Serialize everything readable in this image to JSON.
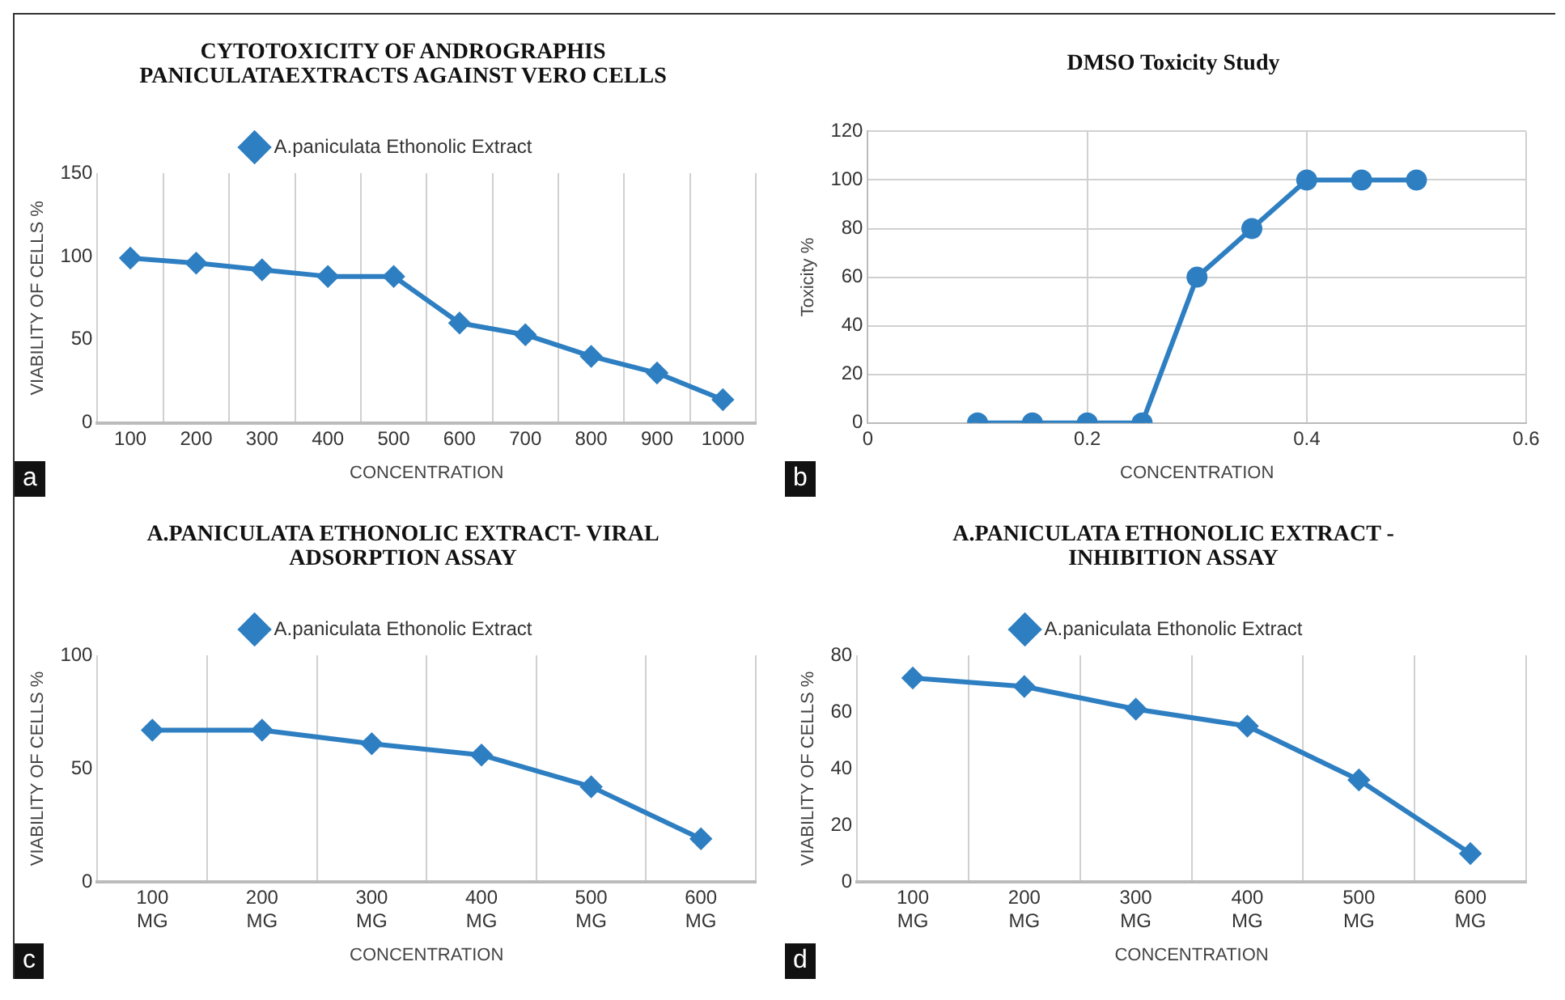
{
  "chart_data": [
    {
      "type": "line",
      "title": "CYTOTOXICITY OF ANDROGRAPHIS PANICULATAEXTRACTS AGAINST VERO CELLS",
      "xlabel": "CONCENTRATION",
      "ylabel": "VIABILITY OF CELLS %",
      "categories": [
        "100",
        "200",
        "300",
        "400",
        "500",
        "600",
        "700",
        "800",
        "900",
        "1000"
      ],
      "series": [
        {
          "name": "A.paniculata Ethonolic Extract",
          "color": "#2e7fc2",
          "values": [
            99,
            96,
            92,
            88,
            88,
            60,
            53,
            40,
            30,
            14
          ]
        }
      ],
      "ylim": [
        0,
        150
      ],
      "yticks": [
        0,
        50,
        100,
        150
      ],
      "grid": "x",
      "legend": "top",
      "marker": "diamond",
      "annotations": [
        "a"
      ]
    },
    {
      "type": "line",
      "title": "DMSO Toxicity Study",
      "xlabel": "CONCENTRATION",
      "ylabel": "Toxicity %",
      "x": [
        0.1,
        0.15,
        0.2,
        0.25,
        0.3,
        0.35,
        0.4,
        0.45,
        0.5
      ],
      "series": [
        {
          "color": "#2e7fc2",
          "values": [
            0,
            0,
            0,
            0,
            60,
            80,
            100,
            100,
            100
          ]
        }
      ],
      "xlim": [
        0,
        0.6
      ],
      "xticks": [
        0,
        0.2,
        0.4,
        0.6
      ],
      "ylim": [
        0,
        120
      ],
      "yticks": [
        0,
        20,
        40,
        60,
        80,
        100,
        120
      ],
      "grid": true,
      "marker": "circle",
      "annotations": [
        "b"
      ]
    },
    {
      "type": "line",
      "title": "A.PANICULATA ETHONOLIC EXTRACT- VIRAL ADSORPTION ASSAY",
      "xlabel": "CONCENTRATION",
      "ylabel": "VIABILITY OF CELLS %",
      "categories": [
        "100 MG",
        "200 MG",
        "300 MG",
        "400 MG",
        "500 MG",
        "600 MG"
      ],
      "series": [
        {
          "name": "A.paniculata Ethonolic Extract",
          "color": "#2e7fc2",
          "values": [
            67,
            67,
            61,
            56,
            42,
            19
          ]
        }
      ],
      "ylim": [
        0,
        100
      ],
      "yticks": [
        0,
        50,
        100
      ],
      "grid": "x",
      "legend": "top",
      "marker": "diamond",
      "annotations": [
        "c"
      ]
    },
    {
      "type": "line",
      "title": "A.PANICULATA ETHONOLIC EXTRACT - INHIBITION ASSAY",
      "xlabel": "CONCENTRATION",
      "ylabel": "VIABILITY OF CELLS %",
      "categories": [
        "100 MG",
        "200 MG",
        "300 MG",
        "400 MG",
        "500 MG",
        "600 MG"
      ],
      "series": [
        {
          "name": "A.paniculata Ethonolic Extract",
          "color": "#2e7fc2",
          "values": [
            72,
            69,
            61,
            55,
            36,
            10
          ]
        }
      ],
      "ylim": [
        0,
        80
      ],
      "yticks": [
        0,
        20,
        40,
        60,
        80
      ],
      "grid": "x",
      "legend": "top",
      "marker": "diamond",
      "annotations": [
        "d"
      ]
    }
  ]
}
